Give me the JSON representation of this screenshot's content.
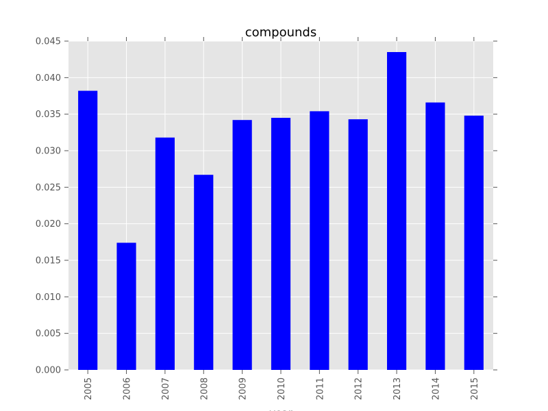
{
  "chart_data": {
    "type": "bar",
    "title": "compounds",
    "xlabel": "year",
    "ylabel": "",
    "categories": [
      "2005",
      "2006",
      "2007",
      "2008",
      "2009",
      "2010",
      "2011",
      "2012",
      "2013",
      "2014",
      "2015"
    ],
    "values": [
      0.0382,
      0.0174,
      0.0318,
      0.0267,
      0.0342,
      0.0345,
      0.0354,
      0.0343,
      0.0435,
      0.0366,
      0.0348
    ],
    "ylim": [
      0,
      0.045
    ],
    "yticks": [
      "0.000",
      "0.005",
      "0.010",
      "0.015",
      "0.020",
      "0.025",
      "0.030",
      "0.035",
      "0.040",
      "0.045"
    ],
    "ytick_values": [
      0,
      0.005,
      0.01,
      0.015,
      0.02,
      0.025,
      0.03,
      0.035,
      0.04,
      0.045
    ],
    "grid": true,
    "legend": false,
    "colors": {
      "bar": "#0000ff",
      "plot_background": "#e5e5e5",
      "grid": "#ffffff",
      "tick_text": "#555555"
    }
  }
}
